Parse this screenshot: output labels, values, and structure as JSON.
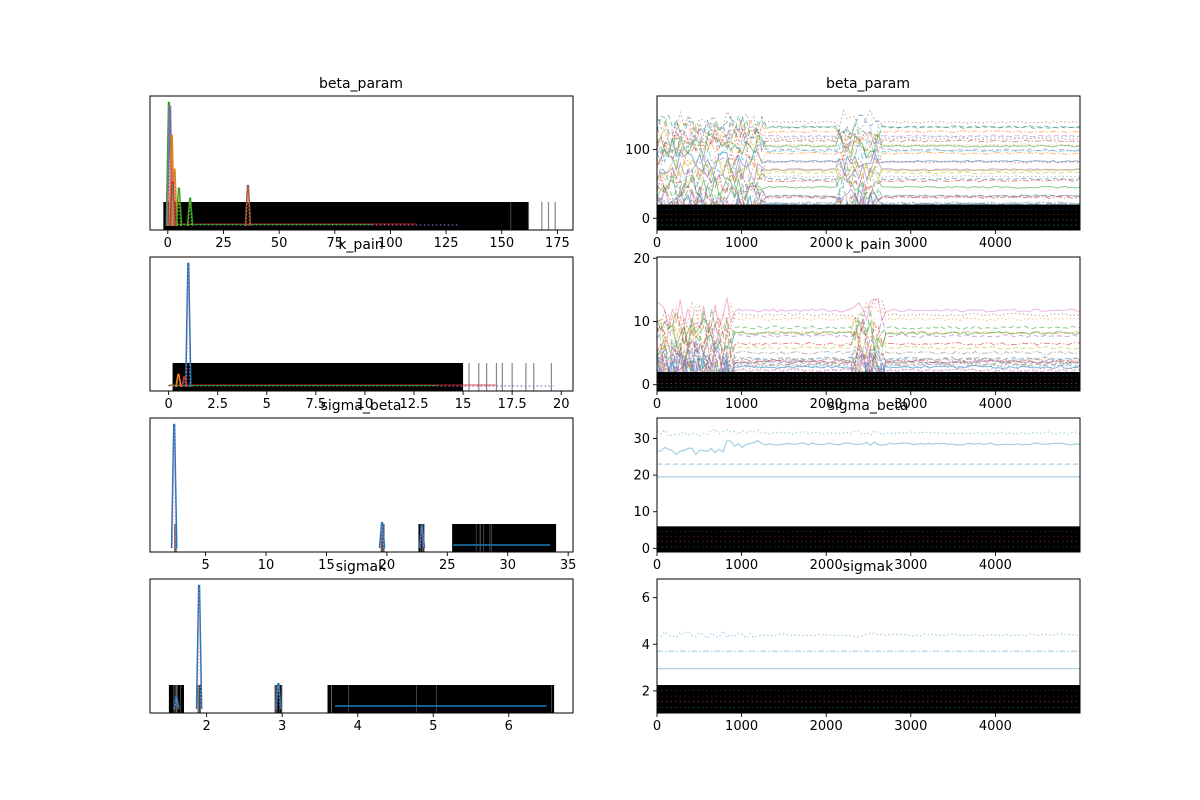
{
  "palette": [
    "#1f77b4",
    "#ff7f0e",
    "#2ca02c",
    "#d62728",
    "#9467bd",
    "#8c564b",
    "#e377c2",
    "#7f7f7f",
    "#bcbd22",
    "#17becf"
  ],
  "chart_data": [
    {
      "type": "line",
      "panel": "kde",
      "title": "beta_param",
      "xlabel": "",
      "ylabel": "",
      "xlim": [
        -8,
        182
      ],
      "ylim": [
        0,
        1
      ],
      "xticks": [
        0,
        25,
        50,
        75,
        100,
        125,
        150,
        175
      ],
      "yticks": [],
      "rug_band": [
        -2,
        162
      ],
      "rug_sparse": [
        154,
        162,
        168,
        171,
        174
      ],
      "kde_peaks": [
        {
          "x": 0.5,
          "height": 0.98,
          "color": 2
        },
        {
          "x": 1.0,
          "height": 0.95,
          "color": 4
        },
        {
          "x": 1.8,
          "height": 0.72,
          "color": 1
        },
        {
          "x": 3.0,
          "height": 0.45,
          "color": 1
        },
        {
          "x": 2.2,
          "height": 0.35,
          "color": 3
        },
        {
          "x": 5.0,
          "height": 0.3,
          "color": 2
        },
        {
          "x": 10.0,
          "height": 0.22,
          "color": 2
        },
        {
          "x": 36.0,
          "height": 0.32,
          "color": 5
        }
      ],
      "tail_end": 131
    },
    {
      "type": "line",
      "panel": "trace",
      "title": "beta_param",
      "xlabel": "",
      "ylabel": "",
      "xlim": [
        0,
        5000
      ],
      "ylim": [
        -17,
        178
      ],
      "xticks": [
        0,
        1000,
        2000,
        3000,
        4000
      ],
      "yticks": [
        0,
        100
      ],
      "dark_band": [
        -17,
        20
      ],
      "n_chains": 34,
      "chain_range": [
        5,
        140
      ],
      "noise_scale": 18,
      "burst_windows": [
        [
          0,
          1250
        ],
        [
          2150,
          2650
        ]
      ]
    },
    {
      "type": "line",
      "panel": "kde",
      "title": "k_pain",
      "xlabel": "",
      "ylabel": "",
      "xlim": [
        -0.95,
        20.6
      ],
      "ylim": [
        0,
        1
      ],
      "xticks": [
        0.0,
        2.5,
        5.0,
        7.5,
        10.0,
        12.5,
        15.0,
        17.5,
        20.0
      ],
      "yticks": [],
      "rug_band": [
        0.2,
        15
      ],
      "rug_sparse": [
        15.3,
        15.8,
        16.2,
        16.7,
        17.0,
        17.5,
        18.2,
        18.6,
        19.5
      ],
      "kde_peaks": [
        {
          "x": 1.0,
          "height": 0.98,
          "color": 0
        },
        {
          "x": 0.5,
          "height": 0.1,
          "color": 1
        },
        {
          "x": 0.8,
          "height": 0.08,
          "color": 3
        }
      ],
      "tail_end": 19.6
    },
    {
      "type": "line",
      "panel": "trace",
      "title": "k_pain",
      "xlabel": "",
      "ylabel": "",
      "xlim": [
        0,
        5000
      ],
      "ylim": [
        -1,
        20.2
      ],
      "xticks": [
        0,
        1000,
        2000,
        3000,
        4000
      ],
      "yticks": [
        0,
        10,
        20
      ],
      "dark_band": [
        -1,
        2
      ],
      "n_chains": 28,
      "chain_range": [
        0.5,
        12
      ],
      "noise_scale": 3,
      "burst_windows": [
        [
          0,
          900
        ],
        [
          2300,
          2700
        ]
      ]
    },
    {
      "type": "line",
      "panel": "kde",
      "title": "sigma_beta",
      "xlabel": "",
      "ylabel": "",
      "xlim": [
        0.4,
        35.4
      ],
      "ylim": [
        0,
        1
      ],
      "xticks": [
        5,
        10,
        15,
        20,
        25,
        30,
        35
      ],
      "yticks": [],
      "rug_clusters": [
        [
          2.4,
          2.6
        ],
        [
          19.5,
          19.8
        ],
        [
          22.6,
          23.1
        ],
        [
          25.4,
          34.0
        ]
      ],
      "kde_peaks": [
        {
          "x": 2.4,
          "height": 0.98,
          "color": 0
        },
        {
          "x": 19.6,
          "height": 0.2,
          "color": 0
        },
        {
          "x": 22.9,
          "height": 0.18,
          "color": 0
        }
      ],
      "flat_segment": [
        25.5,
        33.5
      ]
    },
    {
      "type": "line",
      "panel": "trace",
      "title": "sigma_beta",
      "xlabel": "",
      "ylabel": "",
      "xlim": [
        0,
        5000
      ],
      "ylim": [
        -1,
        35.6
      ],
      "xticks": [
        0,
        1000,
        2000,
        3000,
        4000
      ],
      "yticks": [
        0,
        10,
        20,
        30
      ],
      "dark_band": [
        -1,
        6
      ],
      "chains": [
        {
          "level": 31.5,
          "style": "dotted",
          "noisy": true
        },
        {
          "level": 28.5,
          "style": "solid",
          "noisy": true
        },
        {
          "level": 23.0,
          "style": "dashed",
          "noisy": false
        },
        {
          "level": 19.5,
          "style": "solid",
          "noisy": false
        },
        {
          "level": 2.4,
          "style": "dashdot",
          "noisy": false
        }
      ]
    },
    {
      "type": "line",
      "panel": "kde",
      "title": "sigmak",
      "xlabel": "",
      "ylabel": "",
      "xlim": [
        1.25,
        6.85
      ],
      "ylim": [
        0,
        1
      ],
      "xticks": [
        2,
        3,
        4,
        5,
        6
      ],
      "yticks": [],
      "rug_clusters": [
        [
          1.5,
          1.7
        ],
        [
          1.88,
          1.92
        ],
        [
          2.9,
          3.0
        ],
        [
          3.6,
          6.6
        ]
      ],
      "kde_peaks": [
        {
          "x": 1.9,
          "height": 0.98,
          "color": 0
        },
        {
          "x": 2.95,
          "height": 0.2,
          "color": 0
        },
        {
          "x": 1.6,
          "height": 0.1,
          "color": 0
        }
      ],
      "flat_segment": [
        3.7,
        6.5
      ]
    },
    {
      "type": "line",
      "panel": "trace",
      "title": "sigmak",
      "xlabel": "",
      "ylabel": "",
      "xlim": [
        0,
        5000
      ],
      "ylim": [
        1.05,
        6.8
      ],
      "xticks": [
        0,
        1000,
        2000,
        3000,
        4000
      ],
      "yticks": [
        2,
        4,
        6
      ],
      "dark_band": [
        1.05,
        2.25
      ],
      "chains": [
        {
          "level": 4.4,
          "style": "dotted",
          "noisy": true
        },
        {
          "level": 3.7,
          "style": "dashdot",
          "noisy": false
        },
        {
          "level": 2.95,
          "style": "solid",
          "noisy": false
        },
        {
          "level": 1.9,
          "style": "dashed",
          "noisy": false
        },
        {
          "level": 1.6,
          "style": "solid",
          "noisy": false
        }
      ]
    }
  ]
}
